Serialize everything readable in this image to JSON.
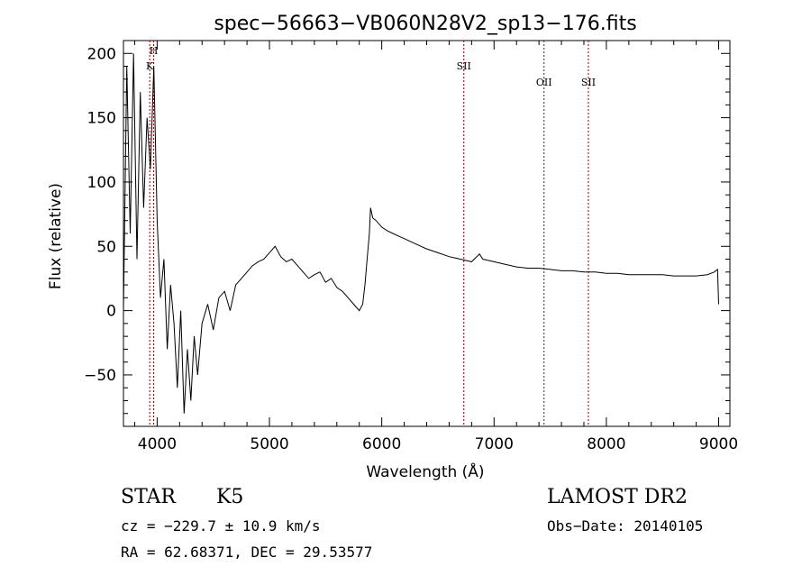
{
  "chart_data": {
    "type": "line",
    "title": "spec−56663−VB060N28V2_sp13−176.fits",
    "xlabel": "Wavelength (Å)",
    "ylabel": "Flux (relative)",
    "xlim": [
      3700,
      9100
    ],
    "ylim": [
      -90,
      210
    ],
    "xticks": [
      4000,
      5000,
      6000,
      7000,
      8000,
      9000
    ],
    "yticks": [
      -50,
      0,
      50,
      100,
      150,
      200
    ],
    "line_color": "#000000",
    "marker_color": "#8b0000",
    "series": [
      {
        "x": [
          3700,
          3730,
          3760,
          3790,
          3820,
          3850,
          3880,
          3910,
          3940,
          3970,
          4000,
          4030,
          4060,
          4090,
          4120,
          4150,
          4180,
          4210,
          4240,
          4270,
          4300,
          4330,
          4360,
          4400,
          4450,
          4500,
          4550,
          4600,
          4650,
          4700,
          4750,
          4800,
          4850,
          4900,
          4950,
          5000,
          5050,
          5100,
          5150,
          5200,
          5250,
          5300,
          5350,
          5400,
          5450,
          5500,
          5550,
          5600,
          5650,
          5700,
          5750,
          5800,
          5830,
          5850,
          5870,
          5890,
          5900,
          5920,
          5950,
          6000,
          6050,
          6100,
          6150,
          6200,
          6300,
          6400,
          6500,
          6600,
          6700,
          6800,
          6870,
          6900,
          7000,
          7100,
          7200,
          7300,
          7400,
          7500,
          7600,
          7700,
          7800,
          7900,
          8000,
          8100,
          8200,
          8300,
          8400,
          8500,
          8600,
          8700,
          8800,
          8900,
          8960,
          8990,
          9000
        ],
        "y": [
          0,
          190,
          60,
          200,
          40,
          170,
          80,
          150,
          110,
          190,
          70,
          10,
          40,
          -30,
          20,
          -10,
          -60,
          0,
          -80,
          -30,
          -70,
          -20,
          -50,
          -10,
          5,
          -15,
          10,
          15,
          0,
          20,
          25,
          30,
          35,
          38,
          40,
          45,
          50,
          42,
          38,
          40,
          35,
          30,
          25,
          28,
          30,
          22,
          25,
          18,
          15,
          10,
          5,
          0,
          5,
          20,
          40,
          60,
          80,
          72,
          70,
          65,
          62,
          60,
          58,
          56,
          52,
          48,
          45,
          42,
          40,
          38,
          44,
          40,
          38,
          36,
          34,
          33,
          33,
          32,
          31,
          31,
          30,
          30,
          29,
          29,
          28,
          28,
          28,
          28,
          27,
          27,
          27,
          28,
          30,
          32,
          5
        ]
      }
    ],
    "markers": [
      {
        "label": "K",
        "x": 3934
      },
      {
        "label": "H",
        "x": 3969
      },
      {
        "label": "SII",
        "x": 6731
      },
      {
        "label": "OII",
        "x": 7445
      },
      {
        "label": "SII",
        "x": 7840
      }
    ]
  },
  "info": {
    "object_class": "STAR",
    "subclass": "K5",
    "survey": "LAMOST DR2",
    "cz": "cz = −229.7 ± 10.9 km/s",
    "obs_date": "Obs−Date: 20140105",
    "radec": "RA =  62.68371, DEC =  29.53577"
  }
}
